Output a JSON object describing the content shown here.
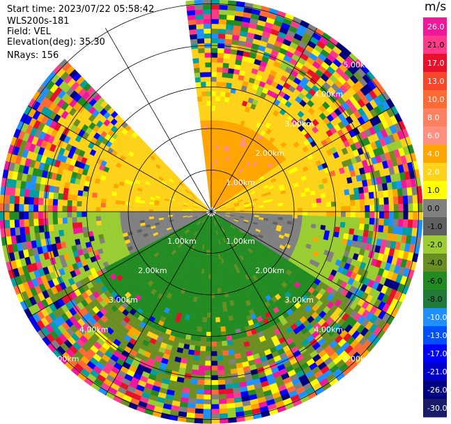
{
  "meta": {
    "start_time": "Start time: 2023/07/22 05:58:42",
    "instrument": "WLS200s-181",
    "field": "Field: VEL",
    "elevation": "Elevation(deg): 35.30",
    "nrays": "NRays: 156"
  },
  "colorbar": {
    "unit": "m/s",
    "ticks": [
      "26.0",
      "21.0",
      "17.0",
      "13.0",
      "10.0",
      "8.0",
      "6.0",
      "4.0",
      "2.0",
      "1.0",
      "0.0",
      "-1.0",
      "-2.0",
      "-4.0",
      "-6.0",
      "-8.0",
      "-10.0",
      "-13.0",
      "-17.0",
      "-21.0",
      "-26.0",
      "-30.0"
    ],
    "colors": [
      "#f0189a",
      "#ff3a8a",
      "#e8102a",
      "#f5452a",
      "#ff6a35",
      "#ff8060",
      "#ff8f80",
      "#ffa500",
      "#ffd21a",
      "#ffff00",
      "#808080",
      "#606060",
      "#9acd32",
      "#6b8e23",
      "#228b22",
      "#1f7a3a",
      "#1e90ff",
      "#0050ff",
      "#0000ff",
      "#0000c8",
      "#000080",
      "#1a1a6a"
    ]
  },
  "chart_data": {
    "type": "ppi_polar",
    "field": "VEL",
    "units": "m/s",
    "range_rings_km": [
      1.0,
      2.0,
      3.0,
      4.0,
      5.0
    ],
    "ring_labels": [
      "1.00km",
      "2.00km",
      "3.00km",
      "4.00km",
      "5.00km"
    ],
    "nrays": 156,
    "elevation_deg": 35.3,
    "blank_sector_deg": [
      -45,
      -7
    ],
    "velocity_pattern": [
      {
        "azimuth_from": -7,
        "azimuth_to": 55,
        "range_km_to": 1.6,
        "value_mps": 4.0
      },
      {
        "azimuth_from": 55,
        "azimuth_to": 90,
        "range_km_to": 1.6,
        "value_mps": 2.0
      },
      {
        "azimuth_from": 270,
        "azimuth_to": 315,
        "range_km_to": 1.6,
        "value_mps": 2.0
      },
      {
        "azimuth_from": 90,
        "azimuth_to": 120,
        "range_km_to": 1.6,
        "value_mps": 0.0
      },
      {
        "azimuth_from": 240,
        "azimuth_to": 270,
        "range_km_to": 1.6,
        "value_mps": 0.0
      },
      {
        "azimuth_from": 120,
        "azimuth_to": 240,
        "range_km_to": 2.5,
        "value_mps": -6.0
      }
    ]
  }
}
